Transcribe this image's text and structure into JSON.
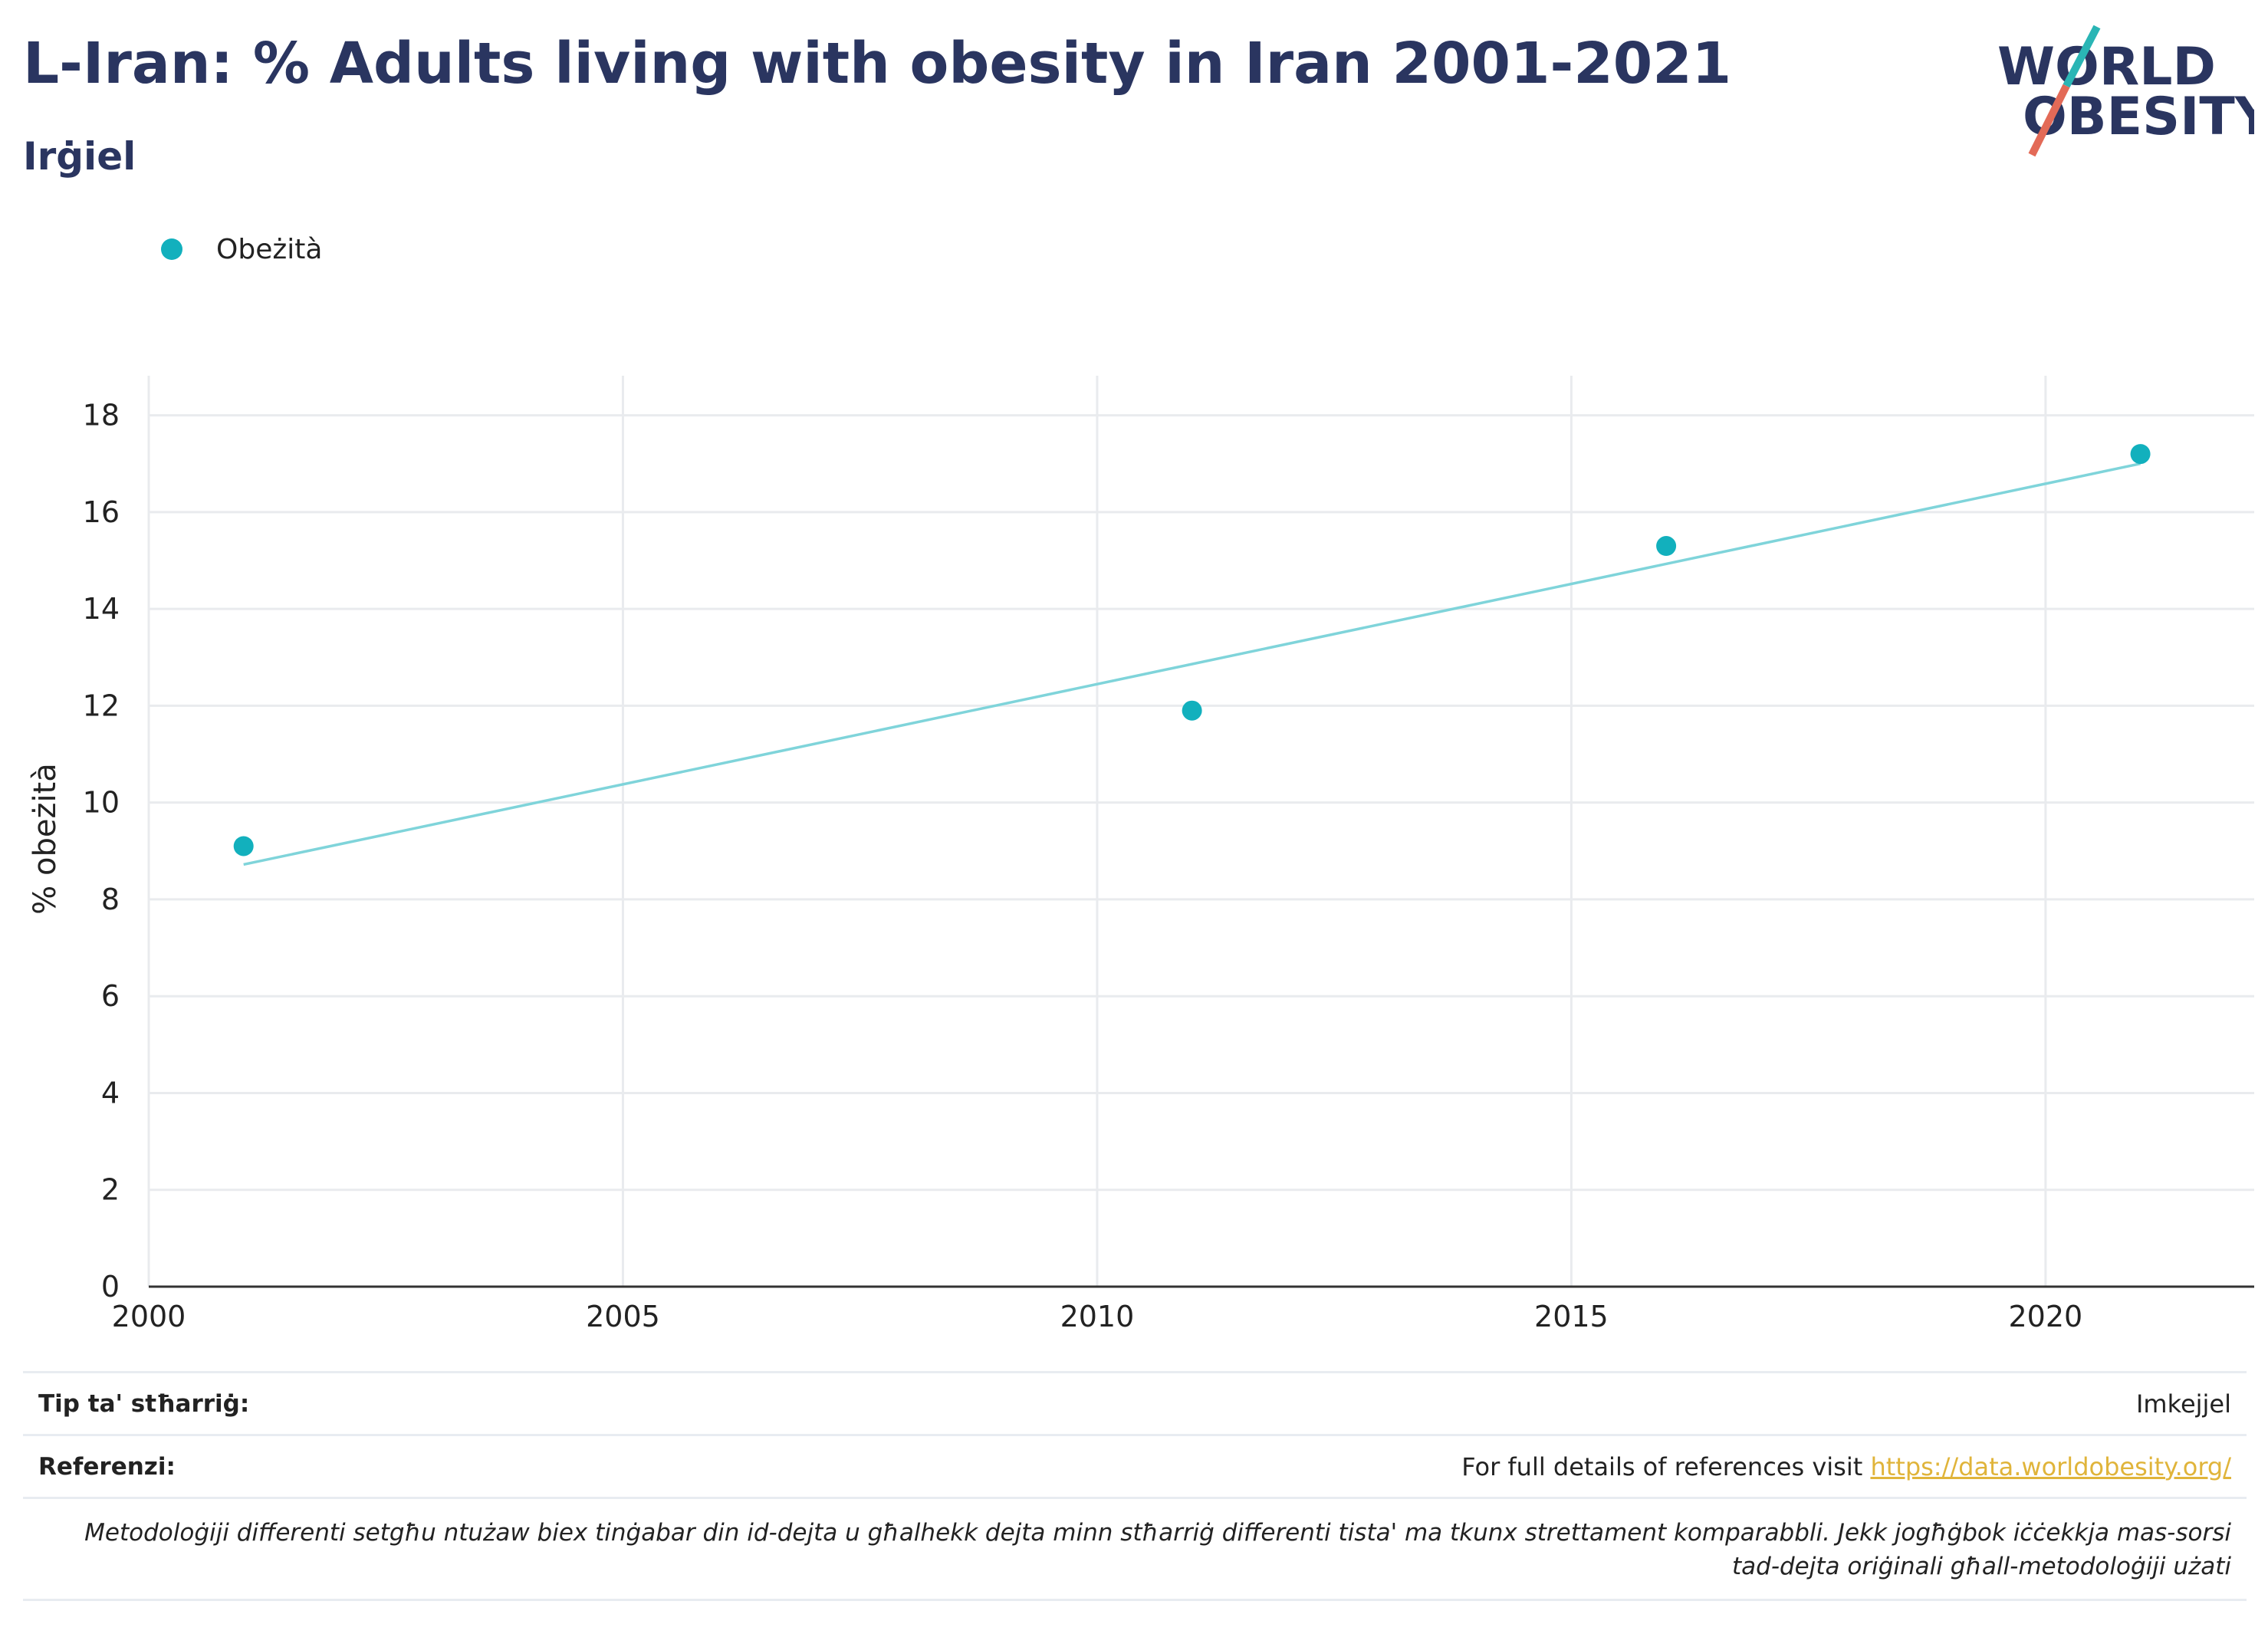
{
  "header": {
    "title": "L-Iran: % Adults living with obesity in Iran 2001-2021",
    "subtitle": "Irġiel"
  },
  "logo": {
    "line1": "WORLD",
    "line2": "OBESITY"
  },
  "legend": {
    "label": "Obeżità",
    "color": "#12b0bd"
  },
  "chart_data": {
    "type": "scatter",
    "ylabel": "% obeżità",
    "xlabel": "",
    "xlim": [
      2000,
      2022.2
    ],
    "ylim": [
      0,
      18.5
    ],
    "xticks": [
      2000,
      2005,
      2010,
      2015,
      2020
    ],
    "yticks": [
      0,
      2,
      4,
      6,
      8,
      10,
      12,
      14,
      16,
      18
    ],
    "grid": true,
    "legend_position": "top-left",
    "series": [
      {
        "name": "Obeżità",
        "color": "#12b0bd",
        "points": [
          {
            "x": 2001,
            "y": 9.1
          },
          {
            "x": 2011,
            "y": 11.9
          },
          {
            "x": 2016,
            "y": 15.3
          },
          {
            "x": 2021,
            "y": 17.2
          }
        ]
      }
    ],
    "trendline": {
      "color": "#7fd4da",
      "start": {
        "x": 2001,
        "y": 8.72
      },
      "end": {
        "x": 2021,
        "y": 17.0
      }
    }
  },
  "footer": {
    "survey_type_label": "Tip ta' stħarriġ:",
    "survey_type_value": "Imkejjel",
    "references_label": "Referenzi:",
    "references_text": "For full details of references visit ",
    "references_link": "https://data.worldobesity.org/",
    "methodology_note_line1": "Metodoloġiji differenti setgħu ntużaw biex tinġabar din id-dejta u għalhekk dejta minn stħarriġ differenti tista' ma tkunx strettament komparabbli. Jekk jogħġbok iċċekkja mas-sorsi",
    "methodology_note_line2": "tad-dejta oriġinali għall-metodoloġiji użati"
  }
}
